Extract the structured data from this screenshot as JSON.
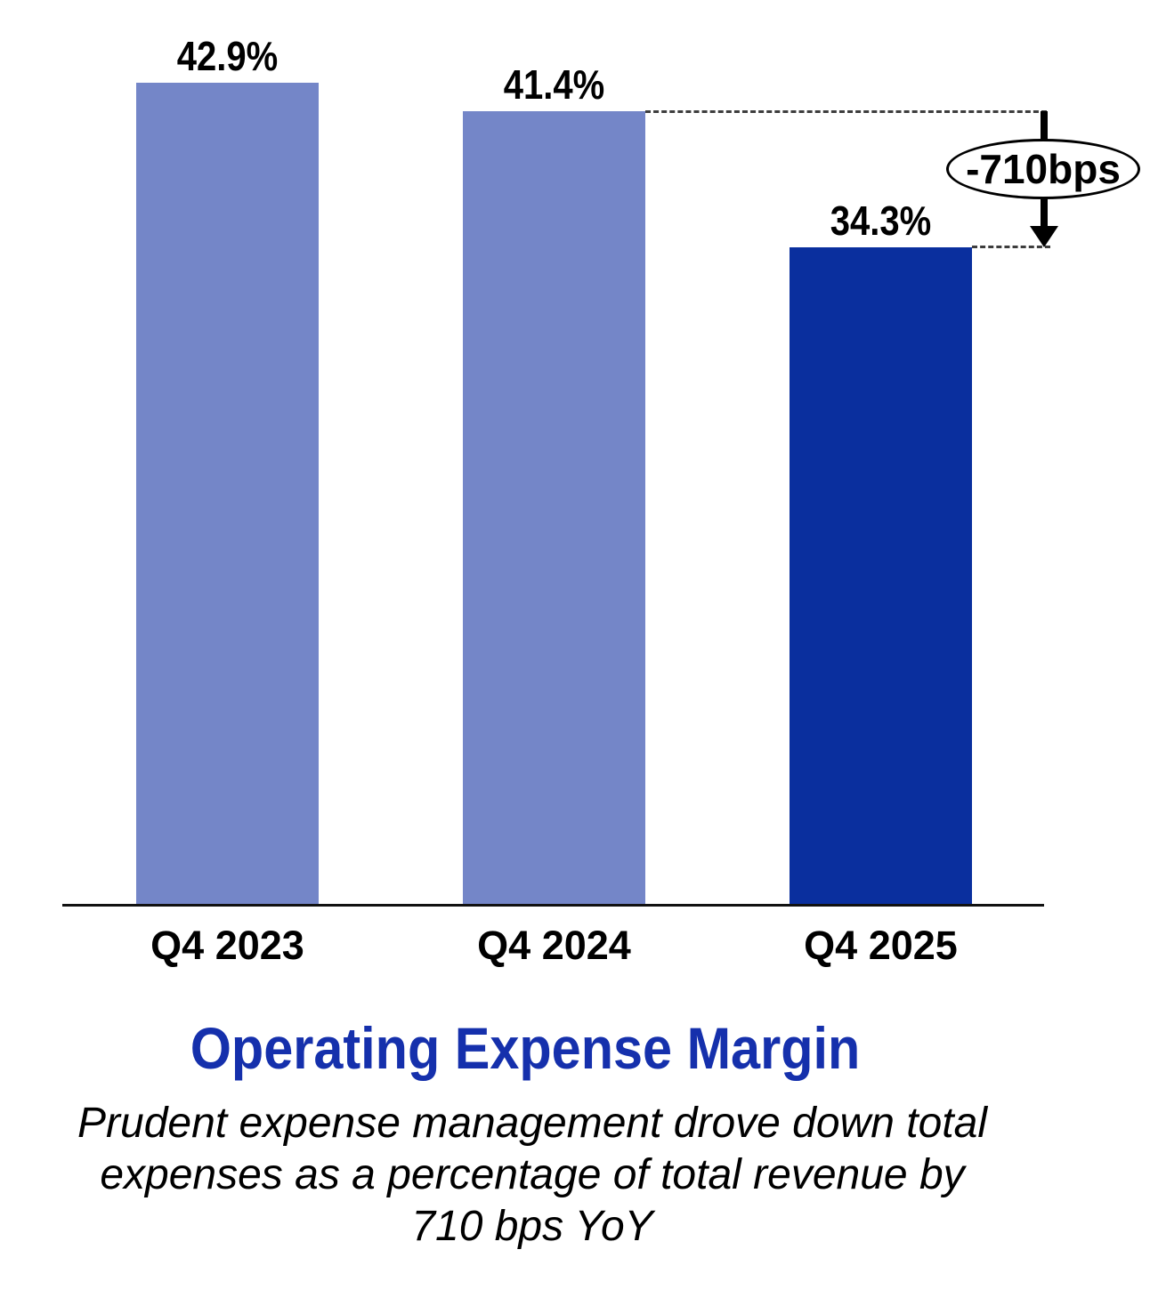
{
  "chart_data": {
    "type": "bar",
    "title": "Operating Expense Margin",
    "subtitle_lines": [
      "Prudent expense management drove down total",
      "expenses as a percentage of total revenue by",
      "710 bps YoY"
    ],
    "categories": [
      "Q4 2023",
      "Q4 2024",
      "Q4 2025"
    ],
    "values": [
      42.9,
      41.4,
      34.3
    ],
    "value_labels": [
      "42.9%",
      "41.4%",
      "34.3%"
    ],
    "bar_colors": [
      "#7486C8",
      "#7486C8",
      "#0A2F9E"
    ],
    "ylim": [
      0,
      47
    ],
    "grid": false,
    "legend": false,
    "annotation": {
      "label": "-710bps",
      "from_category": "Q4 2024",
      "to_category": "Q4 2025"
    },
    "colors": {
      "light_bar": "#7486C8",
      "dark_bar": "#0A2F9E",
      "title_text": "#1530AC",
      "axis": "#111111"
    }
  }
}
